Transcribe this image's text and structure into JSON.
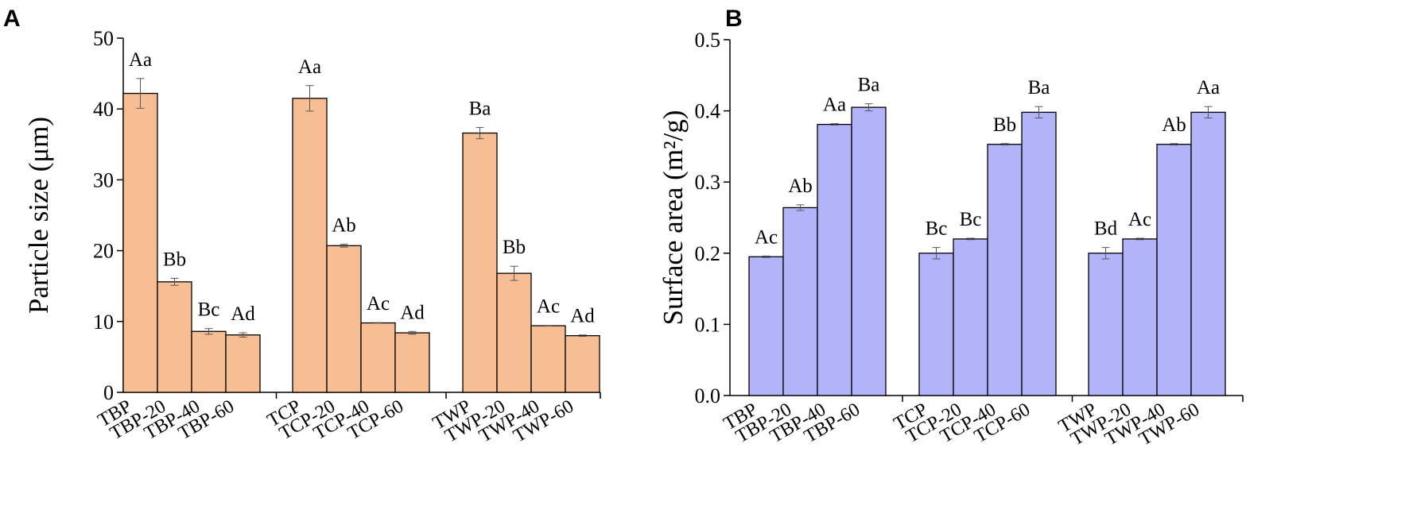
{
  "chart_data": [
    {
      "panel": "A",
      "type": "bar",
      "title": "",
      "xlabel": "",
      "ylabel": "Particle size (μm)",
      "ylim": [
        0,
        50
      ],
      "yticks": [
        0,
        10,
        20,
        30,
        40,
        50
      ],
      "grid": false,
      "legend": "none",
      "color": "#f8be93",
      "groups": [
        {
          "categories": [
            "TBP",
            "TBP-20",
            "TBP-40",
            "TBP-60"
          ],
          "values": [
            42.2,
            15.6,
            8.6,
            8.1
          ],
          "errors": [
            2.1,
            0.5,
            0.4,
            0.3
          ],
          "labels": [
            "Aa",
            "Bb",
            "Bc",
            "Ad"
          ]
        },
        {
          "categories": [
            "TCP",
            "TCP-20",
            "TCP-40",
            "TCP-60"
          ],
          "values": [
            41.5,
            20.7,
            9.8,
            8.4
          ],
          "errors": [
            1.8,
            0.2,
            0.05,
            0.2
          ],
          "labels": [
            "Aa",
            "Ab",
            "Ac",
            "Ad"
          ]
        },
        {
          "categories": [
            "TWP",
            "TWP-20",
            "TWP-40",
            "TWP-60"
          ],
          "values": [
            36.6,
            16.8,
            9.4,
            8.0
          ],
          "errors": [
            0.8,
            1.0,
            0.05,
            0.1
          ],
          "labels": [
            "Ba",
            "Bb",
            "Ac",
            "Ad"
          ]
        }
      ]
    },
    {
      "panel": "B",
      "type": "bar",
      "title": "",
      "xlabel": "",
      "ylabel": "Surface area (m²/g)",
      "ylim": [
        0,
        0.5
      ],
      "yticks": [
        "0.0",
        "0.1",
        "0.2",
        "0.3",
        "0.4",
        "0.5"
      ],
      "grid": false,
      "legend": "none",
      "color": "#b3b3fa",
      "groups": [
        {
          "categories": [
            "TBP",
            "TBP-20",
            "TBP-40",
            "TBP-60"
          ],
          "values": [
            0.195,
            0.264,
            0.381,
            0.405
          ],
          "errors": [
            0.001,
            0.004,
            0.001,
            0.005
          ],
          "labels": [
            "Ac",
            "Ab",
            "Aa",
            "Ba"
          ]
        },
        {
          "categories": [
            "TCP",
            "TCP-20",
            "TCP-40",
            "TCP-60"
          ],
          "values": [
            0.2,
            0.22,
            0.353,
            0.398
          ],
          "errors": [
            0.008,
            0.001,
            0.001,
            0.008
          ],
          "labels": [
            "Bc",
            "Bc",
            "Bb",
            "Ba"
          ]
        },
        {
          "categories": [
            "TWP",
            "TWP-20",
            "TWP-40",
            "TWP-60"
          ],
          "values": [
            0.2,
            0.22,
            0.353,
            0.398
          ],
          "errors": [
            0.008,
            0.001,
            0.001,
            0.008
          ],
          "labels": [
            "Bd",
            "Ac",
            "Ab",
            "Aa"
          ]
        }
      ]
    }
  ]
}
